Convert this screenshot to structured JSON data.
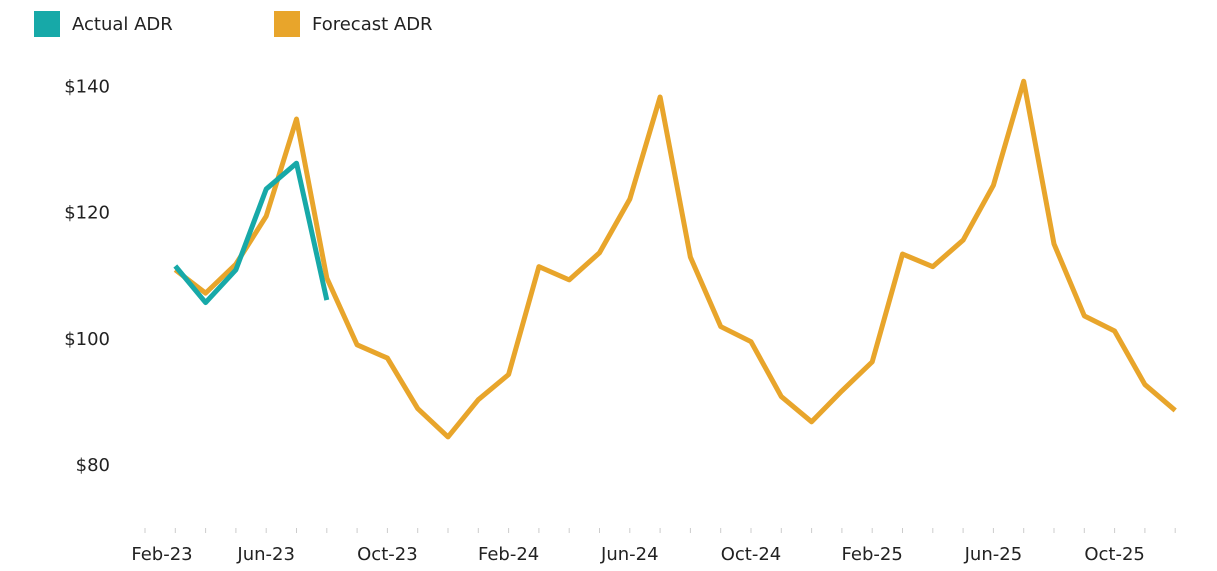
{
  "chart_data": {
    "type": "line",
    "categories": [
      "Feb-23",
      null,
      null,
      null,
      "Jun-23",
      null,
      null,
      null,
      "Oct-23",
      null,
      null,
      null,
      "Feb-24",
      null,
      null,
      null,
      "Jun-24",
      null,
      null,
      null,
      "Oct-24",
      null,
      null,
      null,
      "Feb-25",
      null,
      null,
      null,
      "Jun-25",
      null,
      null,
      null,
      "Oct-25",
      null,
      null
    ],
    "series": [
      {
        "name": "Actual ADR",
        "color": "#17a9a8",
        "values": [
          null,
          111.7,
          105.9,
          111.1,
          123.9,
          128.0,
          106.3,
          null,
          null,
          null,
          null,
          null,
          null,
          null,
          null,
          null,
          null,
          null,
          null,
          null,
          null,
          null,
          null,
          null,
          null,
          null,
          null,
          null,
          null,
          null,
          null,
          null,
          null,
          null,
          null
        ]
      },
      {
        "name": "Forecast ADR",
        "color": "#e8a52b",
        "values": [
          null,
          111.1,
          107.4,
          112.0,
          119.6,
          135.0,
          109.8,
          99.2,
          97.1,
          89.1,
          84.6,
          90.5,
          94.5,
          111.6,
          109.5,
          113.8,
          122.3,
          138.5,
          113.1,
          102.1,
          99.7,
          91.0,
          87.0,
          91.9,
          96.5,
          113.6,
          111.6,
          115.8,
          124.5,
          141.0,
          115.2,
          103.8,
          101.4,
          92.9,
          88.8
        ]
      }
    ],
    "ylim": [
      70,
      145
    ],
    "yticks": [
      {
        "value": 80,
        "label": "$80"
      },
      {
        "value": 100,
        "label": "$100"
      },
      {
        "value": 120,
        "label": "$120"
      },
      {
        "value": 140,
        "label": "$140"
      }
    ],
    "legend": "top-left"
  }
}
